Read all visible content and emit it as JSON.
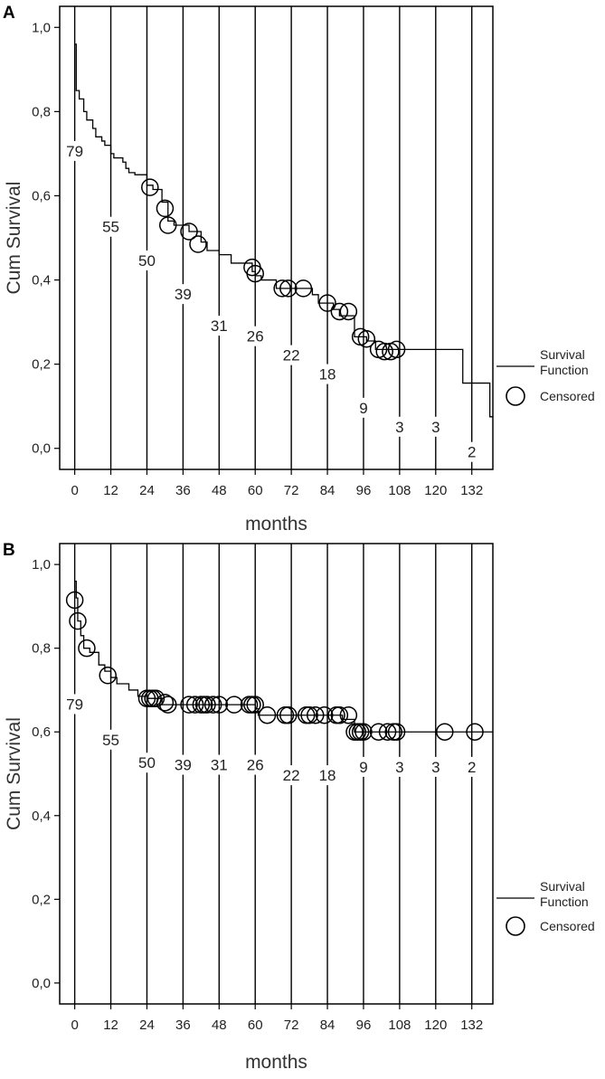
{
  "chart_data": [
    {
      "type": "line",
      "panel_label": "A",
      "xlabel": "months",
      "ylabel": "Cum Survival",
      "xlim": [
        -5,
        139
      ],
      "ylim": [
        -0.05,
        1.05
      ],
      "x_ticks": [
        "0",
        "12",
        "24",
        "36",
        "48",
        "60",
        "72",
        "84",
        "96",
        "108",
        "120",
        "132"
      ],
      "y_ticks": [
        "0,0",
        "0,2",
        "0,4",
        "0,6",
        "0,8",
        "1,0"
      ],
      "grid": "vertical lines every 12 months",
      "legend": {
        "placement": "right",
        "line_label": "Survival Function",
        "marker_label": "Censored"
      },
      "series": [
        {
          "name": "Survival Function",
          "step": [
            [
              0,
              0.96
            ],
            [
              0.5,
              0.85
            ],
            [
              1.5,
              0.83
            ],
            [
              3,
              0.8
            ],
            [
              4,
              0.78
            ],
            [
              6,
              0.76
            ],
            [
              7,
              0.74
            ],
            [
              9,
              0.73
            ],
            [
              10,
              0.72
            ],
            [
              12,
              0.7
            ],
            [
              13,
              0.69
            ],
            [
              16,
              0.68
            ],
            [
              17,
              0.665
            ],
            [
              18,
              0.655
            ],
            [
              20,
              0.65
            ],
            [
              24,
              0.625
            ],
            [
              26,
              0.615
            ],
            [
              29,
              0.585
            ],
            [
              31,
              0.54
            ],
            [
              33,
              0.53
            ],
            [
              38,
              0.515
            ],
            [
              42,
              0.49
            ],
            [
              44,
              0.47
            ],
            [
              48,
              0.46
            ],
            [
              52,
              0.44
            ],
            [
              59,
              0.42
            ],
            [
              60,
              0.41
            ],
            [
              62,
              0.4
            ],
            [
              67,
              0.38
            ],
            [
              79,
              0.365
            ],
            [
              81,
              0.345
            ],
            [
              86,
              0.33
            ],
            [
              88,
              0.315
            ],
            [
              93,
              0.265
            ],
            [
              97,
              0.255
            ],
            [
              100,
              0.235
            ],
            [
              126,
              0.235
            ],
            [
              129,
              0.155
            ],
            [
              136,
              0.155
            ],
            [
              138,
              0.075
            ],
            [
              144,
              0.075
            ]
          ]
        },
        {
          "name": "Censored",
          "points": [
            [
              25,
              0.62
            ],
            [
              30,
              0.57
            ],
            [
              31,
              0.53
            ],
            [
              38,
              0.515
            ],
            [
              41,
              0.485
            ],
            [
              59,
              0.43
            ],
            [
              60,
              0.415
            ],
            [
              69,
              0.38
            ],
            [
              71,
              0.38
            ],
            [
              76,
              0.38
            ],
            [
              84,
              0.345
            ],
            [
              88,
              0.325
            ],
            [
              91,
              0.325
            ],
            [
              95,
              0.265
            ],
            [
              97,
              0.26
            ],
            [
              101,
              0.235
            ],
            [
              103,
              0.23
            ],
            [
              105,
              0.23
            ],
            [
              107,
              0.235
            ]
          ]
        }
      ],
      "numbers_at_risk": [
        {
          "x": 0,
          "label": "79",
          "y": 0.7
        },
        {
          "x": 12,
          "label": "55",
          "y": 0.52
        },
        {
          "x": 24,
          "label": "50",
          "y": 0.44
        },
        {
          "x": 36,
          "label": "39",
          "y": 0.36
        },
        {
          "x": 48,
          "label": "31",
          "y": 0.285
        },
        {
          "x": 60,
          "label": "26",
          "y": 0.26
        },
        {
          "x": 72,
          "label": "22",
          "y": 0.215
        },
        {
          "x": 84,
          "label": "18",
          "y": 0.17
        },
        {
          "x": 96,
          "label": "9",
          "y": 0.09
        },
        {
          "x": 108,
          "label": "3",
          "y": 0.045
        },
        {
          "x": 120,
          "label": "3",
          "y": 0.045
        },
        {
          "x": 132,
          "label": "2",
          "y": -0.015
        }
      ]
    },
    {
      "type": "line",
      "panel_label": "B",
      "xlabel": "months",
      "ylabel": "Cum Survival",
      "xlim": [
        -5,
        139
      ],
      "ylim": [
        -0.05,
        1.05
      ],
      "x_ticks": [
        "0",
        "12",
        "24",
        "36",
        "48",
        "60",
        "72",
        "84",
        "96",
        "108",
        "120",
        "132"
      ],
      "y_ticks": [
        "0,0",
        "0,2",
        "0,4",
        "0,6",
        "0,8",
        "1,0"
      ],
      "grid": "vertical lines every 12 months",
      "legend": {
        "placement": "right",
        "line_label": "Survival Function",
        "marker_label": "Censored"
      },
      "series": [
        {
          "name": "Survival Function",
          "step": [
            [
              0,
              0.96
            ],
            [
              0.5,
              0.92
            ],
            [
              1,
              0.865
            ],
            [
              2,
              0.83
            ],
            [
              3,
              0.8
            ],
            [
              5,
              0.79
            ],
            [
              8,
              0.76
            ],
            [
              10,
              0.745
            ],
            [
              12,
              0.73
            ],
            [
              14,
              0.715
            ],
            [
              18,
              0.7
            ],
            [
              21,
              0.685
            ],
            [
              24,
              0.68
            ],
            [
              29,
              0.665
            ],
            [
              60,
              0.655
            ],
            [
              61,
              0.64
            ],
            [
              84,
              0.64
            ],
            [
              89,
              0.63
            ],
            [
              93,
              0.6
            ],
            [
              144,
              0.6
            ]
          ]
        },
        {
          "name": "Censored",
          "points": [
            [
              0,
              0.915
            ],
            [
              1,
              0.865
            ],
            [
              4,
              0.8
            ],
            [
              11,
              0.735
            ],
            [
              24,
              0.68
            ],
            [
              25,
              0.68
            ],
            [
              26,
              0.68
            ],
            [
              27,
              0.68
            ],
            [
              30,
              0.67
            ],
            [
              31,
              0.665
            ],
            [
              38,
              0.665
            ],
            [
              40,
              0.665
            ],
            [
              42,
              0.665
            ],
            [
              43,
              0.665
            ],
            [
              44,
              0.665
            ],
            [
              46,
              0.665
            ],
            [
              48,
              0.665
            ],
            [
              53,
              0.665
            ],
            [
              58,
              0.665
            ],
            [
              59,
              0.665
            ],
            [
              60,
              0.665
            ],
            [
              64,
              0.64
            ],
            [
              70,
              0.64
            ],
            [
              71,
              0.64
            ],
            [
              77,
              0.64
            ],
            [
              78,
              0.64
            ],
            [
              80,
              0.64
            ],
            [
              83,
              0.64
            ],
            [
              87,
              0.64
            ],
            [
              88,
              0.64
            ],
            [
              91,
              0.64
            ],
            [
              93,
              0.6
            ],
            [
              94,
              0.6
            ],
            [
              95,
              0.6
            ],
            [
              96,
              0.6
            ],
            [
              101,
              0.6
            ],
            [
              104,
              0.6
            ],
            [
              106,
              0.6
            ],
            [
              107,
              0.6
            ],
            [
              123,
              0.6
            ],
            [
              133,
              0.6
            ]
          ]
        }
      ],
      "numbers_at_risk": [
        {
          "x": 0,
          "label": "79",
          "y": 0.66
        },
        {
          "x": 12,
          "label": "55",
          "y": 0.575
        },
        {
          "x": 24,
          "label": "50",
          "y": 0.52
        },
        {
          "x": 36,
          "label": "39",
          "y": 0.515
        },
        {
          "x": 48,
          "label": "31",
          "y": 0.515
        },
        {
          "x": 60,
          "label": "26",
          "y": 0.515
        },
        {
          "x": 72,
          "label": "22",
          "y": 0.49
        },
        {
          "x": 84,
          "label": "18",
          "y": 0.49
        },
        {
          "x": 96,
          "label": "9",
          "y": 0.51
        },
        {
          "x": 108,
          "label": "3",
          "y": 0.51
        },
        {
          "x": 120,
          "label": "3",
          "y": 0.51
        },
        {
          "x": 132,
          "label": "2",
          "y": 0.51
        }
      ]
    }
  ]
}
